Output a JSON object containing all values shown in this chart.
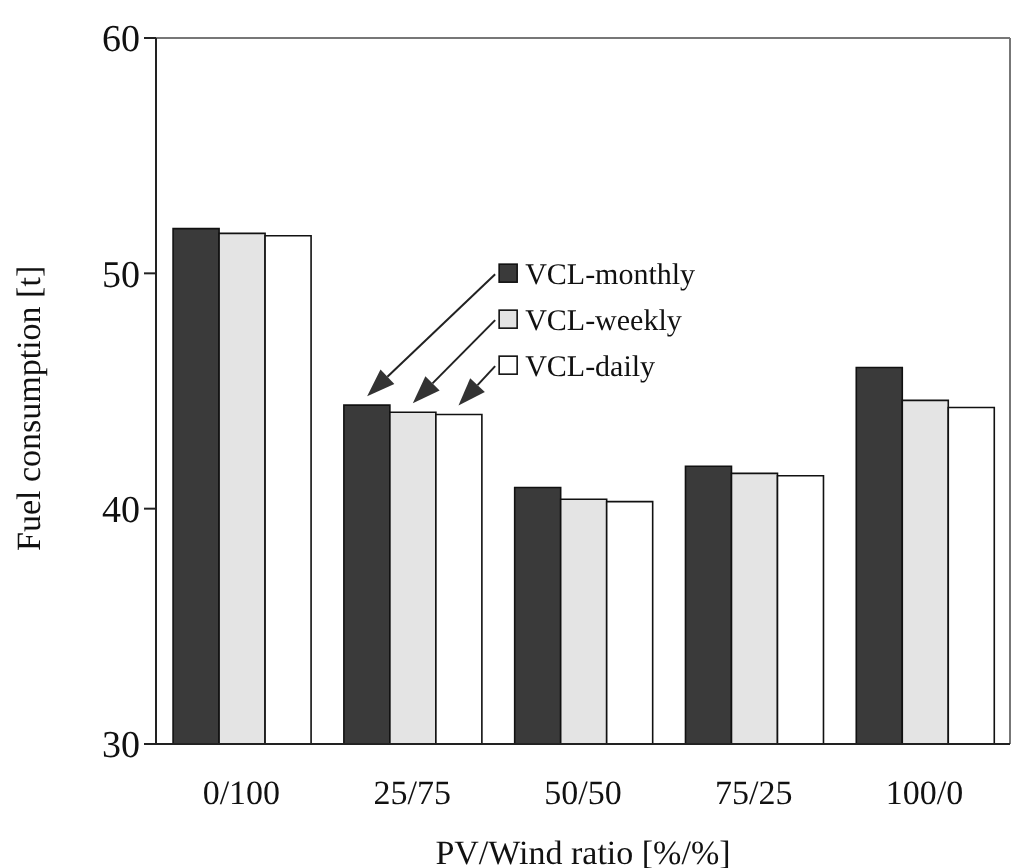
{
  "chart_data": {
    "type": "bar",
    "xlabel": "PV/Wind ratio [%/%]",
    "ylabel": "Fuel consumption [t]",
    "categories": [
      "0/100",
      "25/75",
      "50/50",
      "75/25",
      "100/0"
    ],
    "series": [
      {
        "name": "VCL-monthly",
        "color": "#3a3a3a",
        "values": [
          51.9,
          44.4,
          40.9,
          41.8,
          46.0
        ]
      },
      {
        "name": "VCL-weekly",
        "color": "#e4e4e4",
        "values": [
          51.7,
          44.1,
          40.4,
          41.5,
          44.6
        ]
      },
      {
        "name": "VCL-daily",
        "color": "#ffffff",
        "values": [
          51.6,
          44.0,
          40.3,
          41.4,
          44.3
        ]
      }
    ],
    "ylim": [
      30,
      60
    ],
    "yticks": [
      30,
      40,
      50,
      60
    ],
    "grid": false,
    "legend": "top"
  }
}
